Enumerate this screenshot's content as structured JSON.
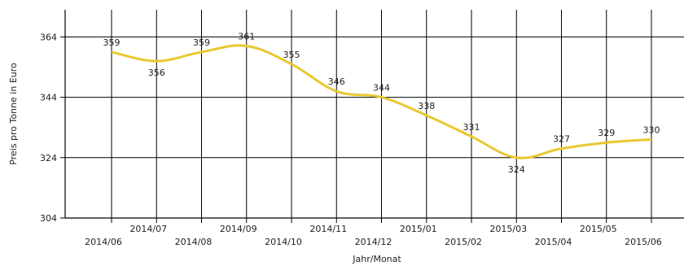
{
  "chart_data": {
    "type": "line",
    "title": "",
    "xlabel": "Jahr/Monat",
    "ylabel": "Preis pro Tonne in Euro",
    "categories": [
      "2014/06",
      "2014/07",
      "2014/08",
      "2014/09",
      "2014/10",
      "2014/11",
      "2014/12",
      "2015/01",
      "2015/02",
      "2015/03",
      "2015/04",
      "2015/05",
      "2015/06"
    ],
    "series": [
      {
        "values": [
          359,
          356,
          359,
          361,
          355,
          346,
          344,
          338,
          331,
          324,
          327,
          329,
          330
        ]
      }
    ],
    "ylim": [
      304,
      373
    ],
    "yticks": [
      "304",
      "324",
      "344",
      "364"
    ],
    "grid": true,
    "line_color": "#E8C830"
  }
}
